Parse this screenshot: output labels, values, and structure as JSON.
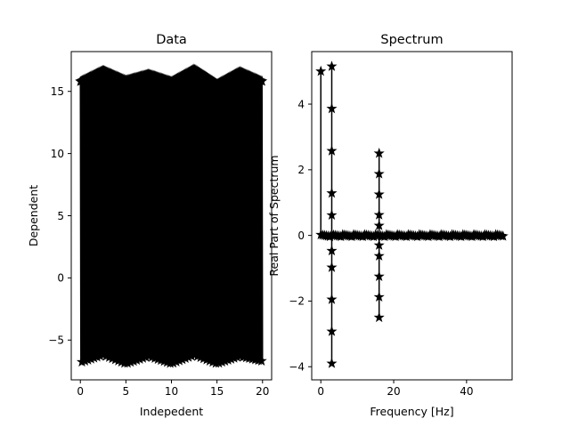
{
  "chart_data": [
    {
      "type": "line",
      "title": "Data",
      "xlabel": "Indepedent",
      "ylabel": "Dependent",
      "xlim": [
        -1,
        21
      ],
      "ylim": [
        -8.2,
        18.2
      ],
      "xticks": [
        0,
        5,
        10,
        15,
        20
      ],
      "yticks": [
        -5,
        0,
        5,
        10,
        15
      ],
      "grid": false,
      "marker": "star",
      "color": "#000000",
      "series": [
        {
          "description_samples": {
            "x": [
              0,
              2.5,
              5,
              7.5,
              10,
              12.5,
              15,
              17.5,
              20
            ],
            "upper_envelope": [
              15.8,
              16.7,
              15.9,
              16.4,
              15.8,
              16.8,
              15.6,
              16.6,
              15.8
            ],
            "lower_envelope": [
              -6.8,
              -6.2,
              -6.9,
              -6.3,
              -6.9,
              -6.2,
              -6.9,
              -6.3,
              -6.7
            ]
          }
        }
      ]
    },
    {
      "type": "line",
      "title": "Spectrum",
      "xlabel": "Frequency [Hz]",
      "ylabel": "Real Part of Spectrum",
      "xlim": [
        -2.5,
        52.5
      ],
      "ylim": [
        -4.4,
        5.6
      ],
      "xticks": [
        0,
        20,
        40
      ],
      "yticks": [
        -4,
        -2,
        0,
        2,
        4
      ],
      "grid": false,
      "marker": "star",
      "color": "#000000",
      "series": [
        {
          "peaks": [
            {
              "x": 0,
              "y": 5.0
            },
            {
              "x": 3,
              "y": 5.15
            },
            {
              "x": 3,
              "y": -3.9
            },
            {
              "x": 16,
              "y": 2.5
            },
            {
              "x": 16,
              "y": -2.5
            }
          ],
          "baseline_x_range": [
            0,
            50
          ],
          "baseline_y": 0
        }
      ]
    }
  ]
}
